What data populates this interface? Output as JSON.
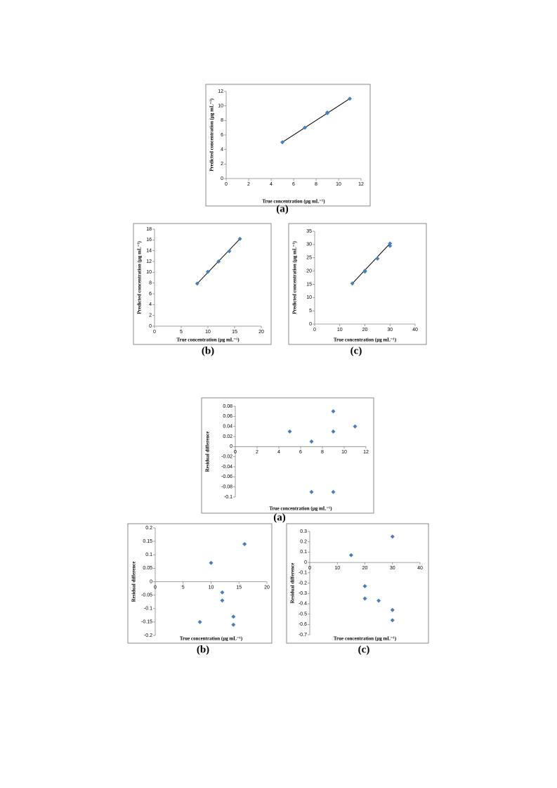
{
  "chart_data": [
    {
      "type": "scatter",
      "caption": "(a)",
      "x_label": "True concentration (µg mL⁻¹)",
      "y_label": "Predicted concentration (µg mL⁻¹)",
      "color": "#4a7ebb",
      "trendline": true,
      "x": [
        5,
        7,
        9,
        9,
        11
      ],
      "values": [
        5,
        7,
        9,
        9.1,
        11
      ],
      "xlim": [
        0,
        12
      ],
      "xticks": [
        0,
        2,
        4,
        6,
        8,
        10,
        12
      ],
      "ylim": [
        0,
        12
      ],
      "yticks": [
        0,
        2,
        4,
        6,
        8,
        10,
        12
      ]
    },
    {
      "type": "scatter",
      "caption": "(b)",
      "x_label": "True concentration (µg mL⁻¹)",
      "y_label": "Predicted concentration (µg mL⁻¹)",
      "color": "#4a7ebb",
      "trendline": true,
      "x": [
        8,
        10,
        12,
        14,
        16
      ],
      "values": [
        7.9,
        10.1,
        12,
        13.9,
        16.2
      ],
      "xlim": [
        0,
        20
      ],
      "xticks": [
        0,
        5,
        10,
        15,
        20
      ],
      "ylim": [
        0,
        18
      ],
      "yticks": [
        0,
        2,
        4,
        6,
        8,
        10,
        12,
        14,
        16,
        18
      ]
    },
    {
      "type": "scatter",
      "caption": "(c)",
      "x_label": "True concentration (µg mL⁻¹)",
      "y_label": "Predicted concentration (µg mL⁻¹)",
      "color": "#4a7ebb",
      "trendline": true,
      "x": [
        15,
        20,
        20,
        25,
        30,
        30
      ],
      "values": [
        15.3,
        19.8,
        20.1,
        24.7,
        29.5,
        30.4
      ],
      "xlim": [
        0,
        40
      ],
      "xticks": [
        0,
        10,
        20,
        30,
        40
      ],
      "ylim": [
        0,
        35
      ],
      "yticks": [
        0,
        5,
        10,
        15,
        20,
        25,
        30,
        35
      ]
    },
    {
      "type": "scatter",
      "caption": "(a)",
      "x_label": "True concentration (µg mL⁻¹)",
      "y_label": "Residual difference",
      "color": "#4a7ebb",
      "trendline": false,
      "x": [
        5,
        7,
        7,
        9,
        9,
        9,
        11
      ],
      "values": [
        0.03,
        0.01,
        -0.09,
        0.07,
        0.03,
        -0.09,
        0.04
      ],
      "xlim": [
        0,
        12
      ],
      "xticks": [
        0,
        2,
        4,
        6,
        8,
        10,
        12
      ],
      "ylim": [
        -0.1,
        0.08
      ],
      "yticks": [
        -0.1,
        -0.08,
        -0.06,
        -0.04,
        -0.02,
        0,
        0.02,
        0.04,
        0.06,
        0.08
      ]
    },
    {
      "type": "scatter",
      "caption": "(b)",
      "x_label": "True concentration (µg mL⁻¹)",
      "y_label": "Residual difference",
      "color": "#4a7ebb",
      "trendline": false,
      "x": [
        8,
        10,
        12,
        12,
        14,
        14,
        16
      ],
      "values": [
        -0.15,
        0.07,
        -0.04,
        -0.07,
        -0.13,
        -0.16,
        0.14
      ],
      "xlim": [
        0,
        20
      ],
      "xticks": [
        0,
        5,
        10,
        15,
        20
      ],
      "ylim": [
        -0.2,
        0.2
      ],
      "yticks": [
        -0.2,
        -0.15,
        -0.1,
        -0.05,
        0,
        0.05,
        0.1,
        0.15,
        0.2
      ]
    },
    {
      "type": "scatter",
      "caption": "(c)",
      "x_label": "True concentration (µg mL⁻¹)",
      "y_label": "Residual difference",
      "color": "#4a7ebb",
      "trendline": false,
      "x": [
        15,
        20,
        20,
        25,
        30,
        30,
        30
      ],
      "values": [
        0.07,
        -0.23,
        -0.35,
        -0.37,
        0.25,
        -0.46,
        -0.56
      ],
      "xlim": [
        0,
        40
      ],
      "xticks": [
        0,
        10,
        20,
        30,
        40
      ],
      "ylim": [
        -0.7,
        0.3
      ],
      "yticks": [
        -0.7,
        -0.6,
        -0.5,
        -0.4,
        -0.3,
        -0.2,
        -0.1,
        0,
        0.1,
        0.2,
        0.3
      ]
    }
  ]
}
